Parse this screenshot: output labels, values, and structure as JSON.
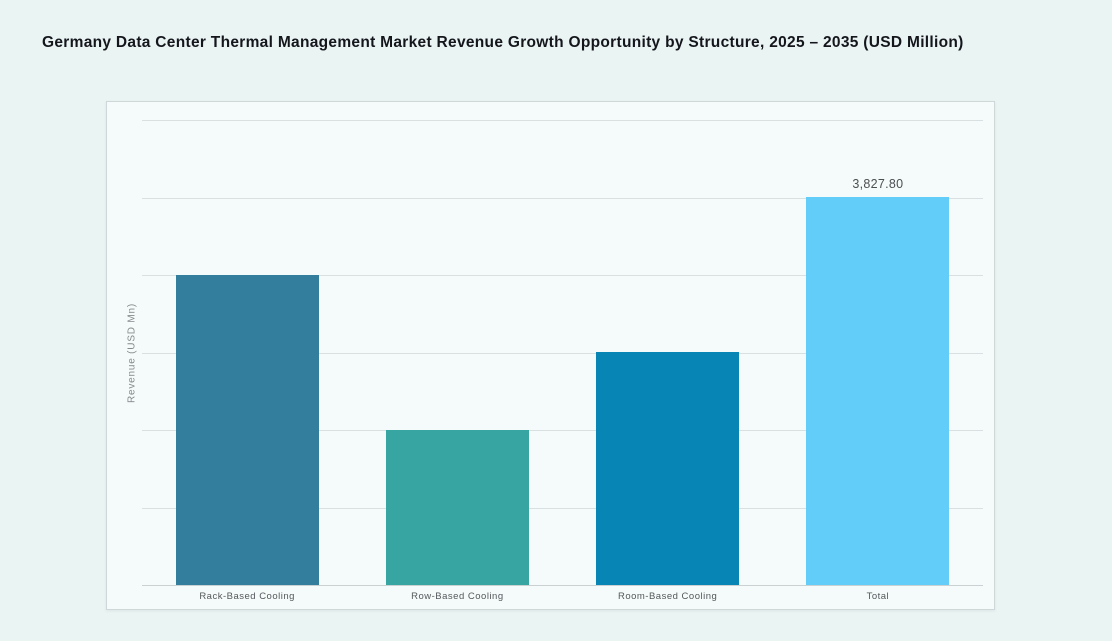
{
  "chart_data": {
    "type": "bar",
    "title": "Germany Data Center Thermal Management Market Revenue Growth Opportunity by Structure, 2025 – 2035 (USD Million)",
    "xlabel": "",
    "ylabel": "Revenue (USD Mn)",
    "categories": [
      "Rack-Based Cooling",
      "Row-Based Cooling",
      "Room-Based Cooling",
      "Total"
    ],
    "values": [
      3062,
      1531,
      2297,
      3827.8
    ],
    "value_labels": [
      "",
      "",
      "",
      "3,827.80"
    ],
    "bar_colors": [
      "#337e9d",
      "#37a5a1",
      "#0785b4",
      "#63cdf9"
    ],
    "ylim": [
      0,
      4590
    ],
    "gridline_count": 7,
    "grid": "horizontal",
    "legend_position": "none"
  },
  "colors": {
    "page_background": "#eaf4f3",
    "card_background": "#f5fafa",
    "card_border": "#cfd7d9",
    "gridline": "#d9e0e1",
    "title_text": "#14161c",
    "axis_text": "#54585b",
    "value_label_text": "#4c4f52"
  }
}
